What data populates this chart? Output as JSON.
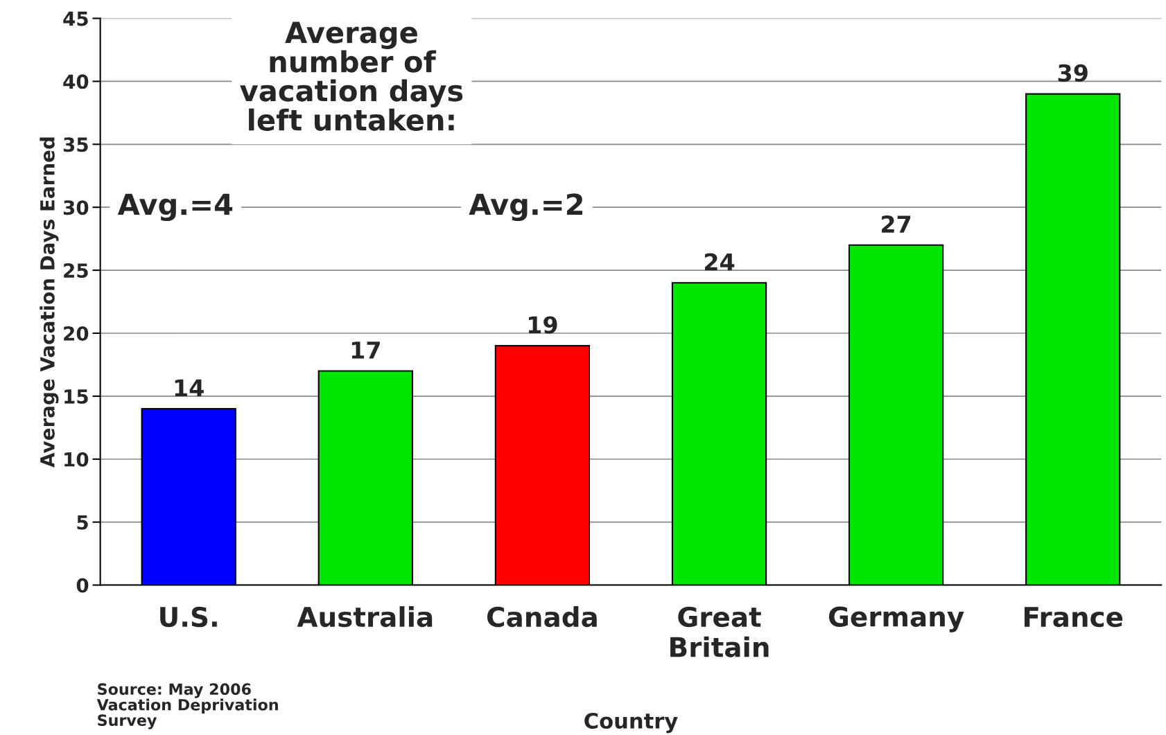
{
  "chart_data": {
    "type": "bar",
    "categories": [
      "U.S.",
      "Australia",
      "Canada",
      "Great Britain",
      "Germany",
      "France"
    ],
    "values": [
      14,
      17,
      19,
      24,
      27,
      39
    ],
    "colors": [
      "#0000ff",
      "#00e600",
      "#ff0000",
      "#00e600",
      "#00e600",
      "#00e600"
    ],
    "xlabel": "Country",
    "ylabel": "Average Vacation Days Earned",
    "ylim": [
      0,
      45
    ],
    "yticks": [
      0,
      5,
      10,
      15,
      20,
      25,
      30,
      35,
      40,
      45
    ],
    "grid": "y",
    "data_labels": true,
    "legend": false,
    "annotations": [
      "Average number of vacation days left untaken:",
      "Avg.=4",
      "Avg.=2",
      "Source: May 2006 Vacation Deprivation Survey"
    ]
  }
}
